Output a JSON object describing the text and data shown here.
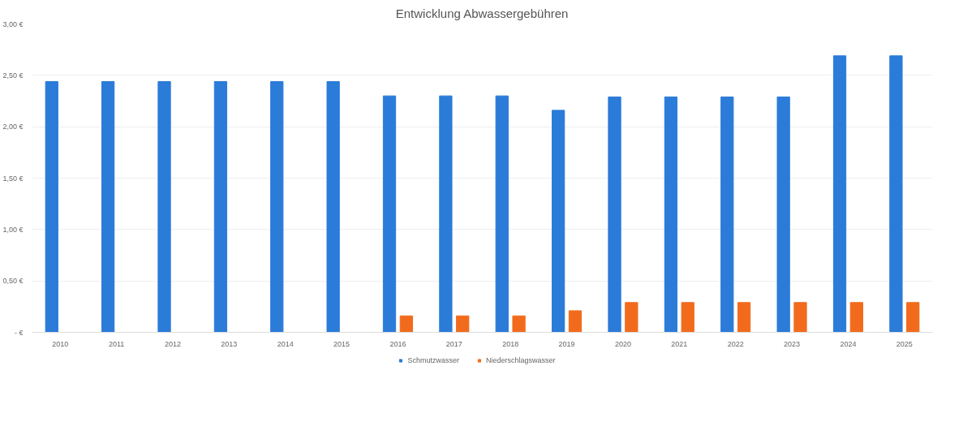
{
  "chart_data": {
    "type": "bar",
    "title": "Entwicklung Abwassergebühren",
    "categories": [
      "2010",
      "2011",
      "2012",
      "2013",
      "2014",
      "2015",
      "2016",
      "2017",
      "2018",
      "2019",
      "2020",
      "2021",
      "2022",
      "2023",
      "2024",
      "2025"
    ],
    "series": [
      {
        "name": "Schmutzwasser",
        "color": "#2b7bd9",
        "values": [
          2.44,
          2.44,
          2.44,
          2.44,
          2.44,
          2.44,
          2.3,
          2.3,
          2.3,
          2.16,
          2.29,
          2.29,
          2.29,
          2.29,
          2.69,
          2.69
        ]
      },
      {
        "name": "Niederschlagswasser",
        "color": "#f26b1d",
        "values": [
          null,
          null,
          null,
          null,
          null,
          null,
          0.16,
          0.16,
          0.16,
          0.21,
          0.29,
          0.29,
          0.29,
          0.29,
          0.29,
          0.29
        ]
      }
    ],
    "ylim": [
      0,
      3
    ],
    "yticks": [
      {
        "value": 0,
        "label": "- €"
      },
      {
        "value": 0.5,
        "label": "0,50 €"
      },
      {
        "value": 1,
        "label": "1,00 €"
      },
      {
        "value": 1.5,
        "label": "1,50 €"
      },
      {
        "value": 2,
        "label": "2,00 €"
      },
      {
        "value": 2.5,
        "label": "2,50 €"
      },
      {
        "value": 3,
        "label": "3,00 €"
      }
    ],
    "grid": "y",
    "legend": "bottom"
  }
}
